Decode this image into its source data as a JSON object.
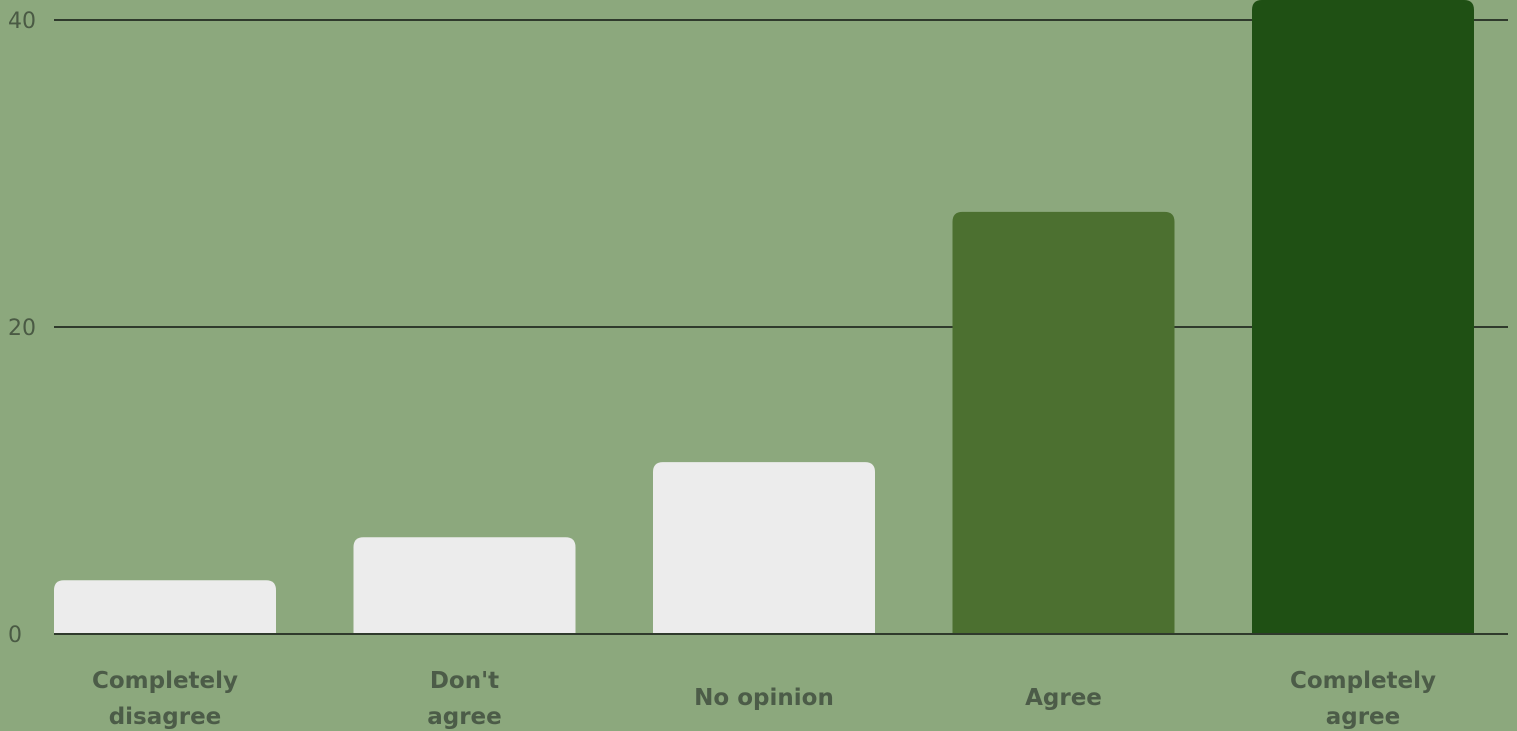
{
  "chart_data": {
    "type": "bar",
    "categories": [
      [
        "Completely",
        "disagree"
      ],
      [
        "Don't",
        "agree"
      ],
      [
        "No opinion"
      ],
      [
        "Agree"
      ],
      [
        "Completely",
        "agree"
      ]
    ],
    "values": [
      3.5,
      6.3,
      11.2,
      27.5,
      42
    ],
    "bar_colors": [
      "#ececec",
      "#ececec",
      "#ececec",
      "#4c7030",
      "#1f5014"
    ],
    "yticks": [
      0,
      20,
      40
    ],
    "ylim": [
      0,
      42
    ],
    "grid": true,
    "title": "",
    "xlabel": "",
    "ylabel": ""
  },
  "colors": {
    "background": "#8ca87d",
    "axis": "#2f3a2c",
    "tick_text": "#4a5a44",
    "category_text": "#4c5c48"
  }
}
